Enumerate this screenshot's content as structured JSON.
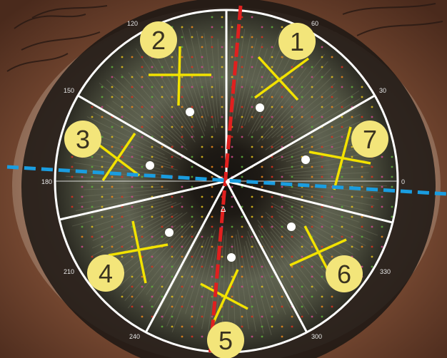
{
  "degree_labels": {
    "d0": "0",
    "d30": "30",
    "d60": "60",
    "d120": "120",
    "d150": "150",
    "d180": "180",
    "d210": "210",
    "d240": "240",
    "d300": "300",
    "d330": "330"
  },
  "center_marker": "Δ",
  "sectors": [
    {
      "id": 1,
      "label": "1"
    },
    {
      "id": 2,
      "label": "2"
    },
    {
      "id": 3,
      "label": "3"
    },
    {
      "id": 4,
      "label": "4"
    },
    {
      "id": 5,
      "label": "5"
    },
    {
      "id": 6,
      "label": "6"
    },
    {
      "id": 7,
      "label": "7"
    }
  ],
  "colors": {
    "ring": "#ffffff",
    "cross": "#f2e200",
    "badge": "#f3e57a",
    "red_axis": "#e0201f",
    "blue_axis": "#1a9de0"
  }
}
